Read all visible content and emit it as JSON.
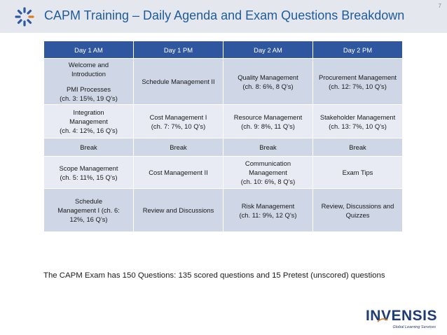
{
  "header": {
    "title": "CAPM Training – Daily Agenda and Exam Questions Breakdown",
    "page_number": "7"
  },
  "colors": {
    "header_bar": "#e4e8ee",
    "title": "#1f5b9a",
    "table_header": "#2f57a0",
    "row_dark": "#cfd6e6",
    "row_light": "#e8ebf3",
    "logo_orange": "#e07a1f",
    "brand_navy": "#1f3d73"
  },
  "table": {
    "columns": [
      "Day 1 AM",
      "Day 1 PM",
      "Day 2 AM",
      "Day 2 PM"
    ],
    "rows": [
      [
        {
          "lines": [
            "Welcome and",
            "Introduction",
            "",
            "PMI Processes",
            "(ch. 3: 15%, 19 Q’s)"
          ]
        },
        {
          "lines": [
            "Schedule Management II"
          ]
        },
        {
          "lines": [
            "Quality Management",
            "(ch. 8: 6%, 8 Q’s)"
          ]
        },
        {
          "lines": [
            "Procurement Management",
            "(ch. 12: 7%, 10 Q’s)"
          ]
        }
      ],
      [
        {
          "lines": [
            "Integration",
            "Management",
            "(ch. 4: 12%, 16 Q’s)"
          ]
        },
        {
          "lines": [
            "Cost Management I",
            "(ch. 7: 7%, 10 Q’s)"
          ]
        },
        {
          "lines": [
            "Resource Management",
            "(ch. 9: 8%, 11 Q’s)"
          ]
        },
        {
          "lines": [
            "Stakeholder Management",
            "(ch. 13: 7%, 10 Q’s)"
          ]
        }
      ],
      [
        {
          "lines": [
            "Break"
          ]
        },
        {
          "lines": [
            "Break"
          ]
        },
        {
          "lines": [
            "Break"
          ]
        },
        {
          "lines": [
            "Break"
          ]
        }
      ],
      [
        {
          "lines": [
            "Scope Management",
            "(ch. 5: 11%, 15 Q’s)"
          ]
        },
        {
          "lines": [
            "Cost Management II"
          ]
        },
        {
          "lines": [
            "Communication",
            "Management",
            "(ch. 10: 6%, 8 Q’s)"
          ]
        },
        {
          "lines": [
            "Exam Tips"
          ]
        }
      ],
      [
        {
          "lines": [
            "Schedule",
            "Management I (ch. 6:",
            "12%, 16 Q’s)"
          ]
        },
        {
          "lines": [
            "Review and Discussions"
          ]
        },
        {
          "lines": [
            "Risk Management",
            "(ch. 11: 9%, 12 Q’s)"
          ]
        },
        {
          "lines": [
            "Review, Discussions and",
            "Quizzes"
          ]
        }
      ]
    ]
  },
  "footnote": "The CAPM Exam has 150 Questions: 135 scored questions and 15 Pretest (unscored) questions",
  "brand": {
    "name": "INVENSIS",
    "tagline": "Global Learning Services"
  },
  "icons": {
    "logo_mark": "spinner-burst-icon"
  }
}
